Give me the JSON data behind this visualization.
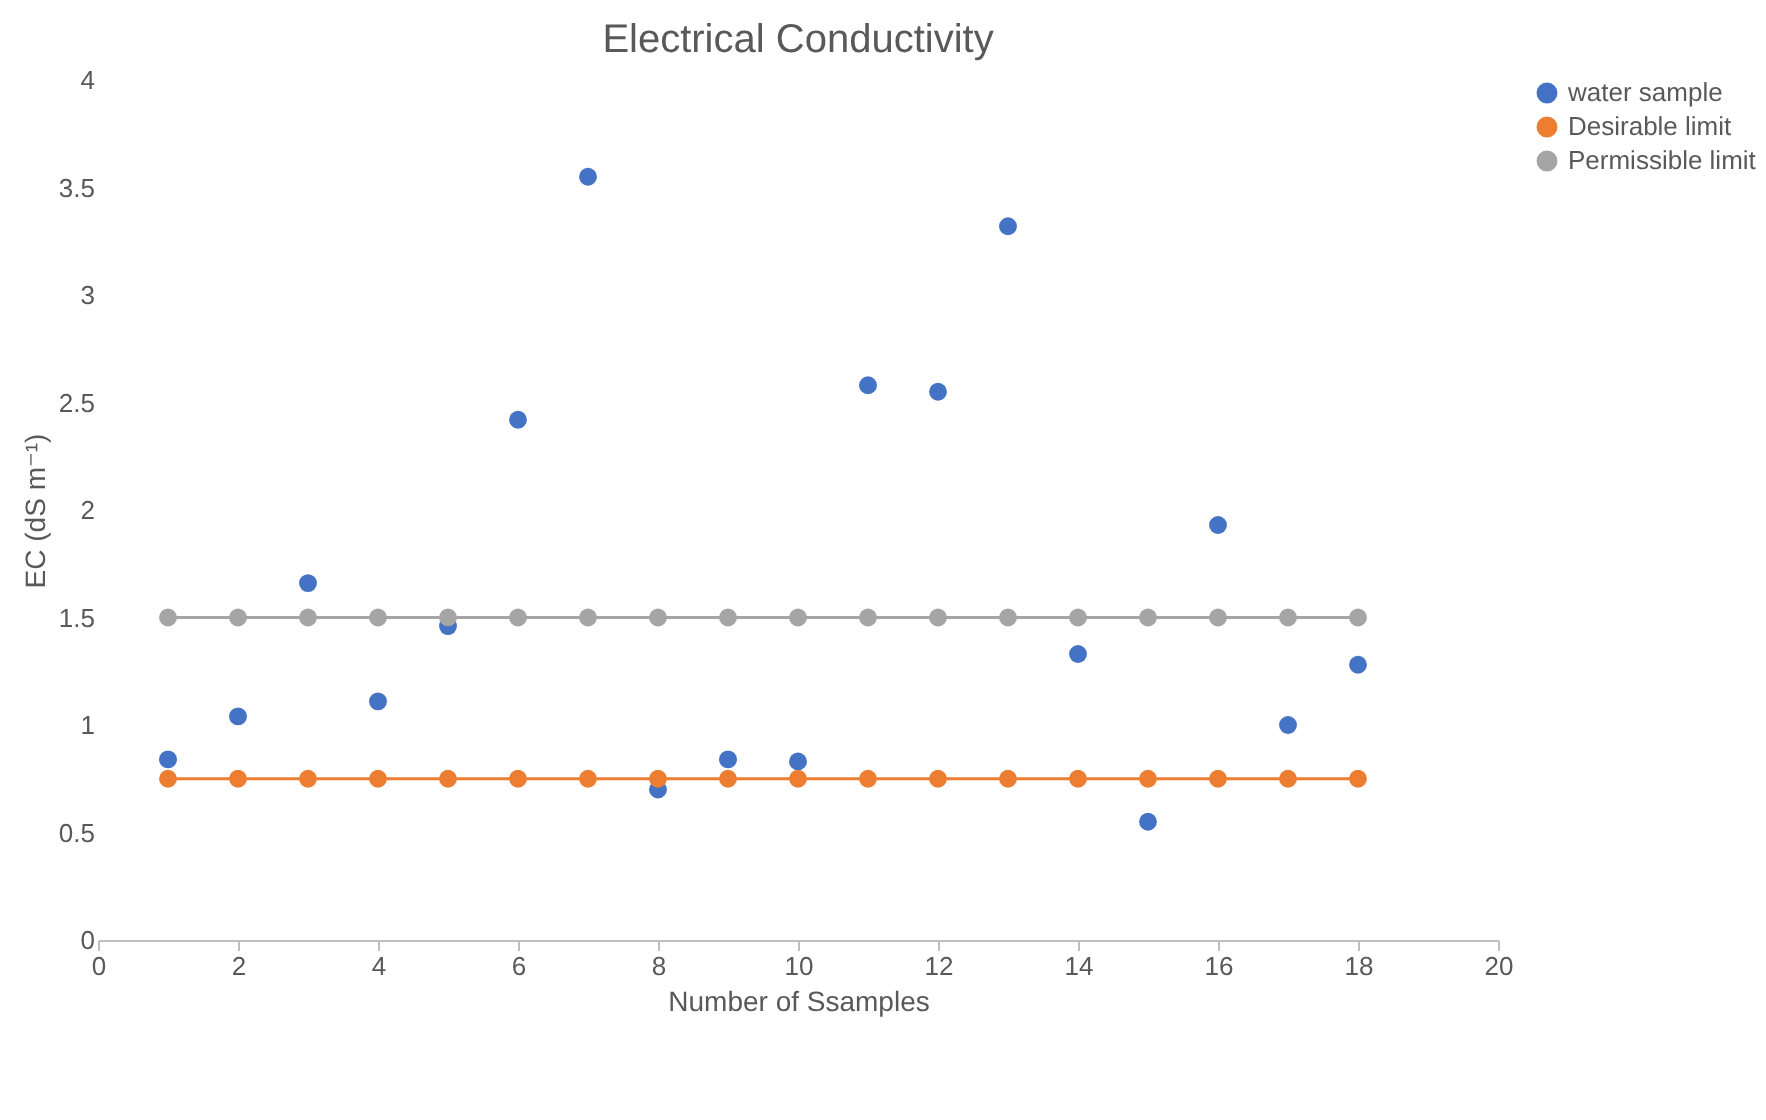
{
  "chart_data": {
    "type": "scatter",
    "title": "Electrical Conductivity",
    "xlabel": "Number of Ssamples",
    "ylabel": "EC (dS m⁻¹)",
    "x": [
      1,
      2,
      3,
      4,
      5,
      6,
      7,
      8,
      9,
      10,
      11,
      12,
      13,
      14,
      15,
      16,
      17,
      18
    ],
    "series": [
      {
        "name": "water sample",
        "type": "scatter",
        "color": "#4472c4",
        "values": [
          0.84,
          1.04,
          1.66,
          1.11,
          1.46,
          2.42,
          3.55,
          0.7,
          0.84,
          0.83,
          2.58,
          2.55,
          3.32,
          1.33,
          0.55,
          1.93,
          1.0,
          1.28
        ]
      },
      {
        "name": "Desirable limit",
        "type": "line",
        "color": "#ed7d31",
        "values": [
          0.75,
          0.75,
          0.75,
          0.75,
          0.75,
          0.75,
          0.75,
          0.75,
          0.75,
          0.75,
          0.75,
          0.75,
          0.75,
          0.75,
          0.75,
          0.75,
          0.75,
          0.75
        ]
      },
      {
        "name": "Permissible limit",
        "type": "line",
        "color": "#a5a5a5",
        "values": [
          1.5,
          1.5,
          1.5,
          1.5,
          1.5,
          1.5,
          1.5,
          1.5,
          1.5,
          1.5,
          1.5,
          1.5,
          1.5,
          1.5,
          1.5,
          1.5,
          1.5,
          1.5
        ]
      }
    ],
    "xlim": [
      0,
      20
    ],
    "xticks": [
      0,
      2,
      4,
      6,
      8,
      10,
      12,
      14,
      16,
      18,
      20
    ],
    "ylim": [
      0,
      4
    ],
    "yticks": [
      0,
      0.5,
      1,
      1.5,
      2,
      2.5,
      3,
      3.5,
      4
    ],
    "grid": false,
    "legend": "top right",
    "marker": "circle"
  }
}
